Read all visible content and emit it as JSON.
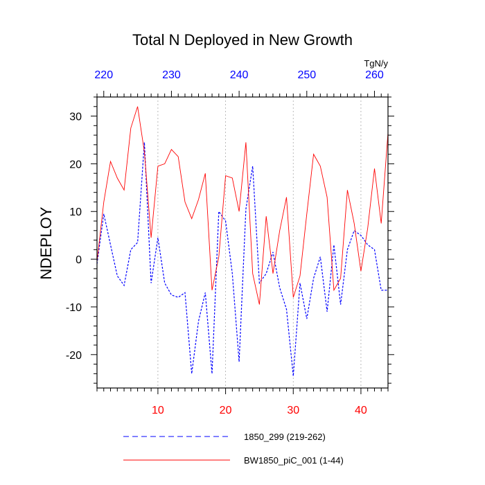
{
  "chart_data": {
    "type": "line",
    "title": "Total N Deployed in New Growth",
    "ylabel": "NDEPLOY",
    "units": "TgN/y",
    "xlim": [
      1,
      44
    ],
    "ylim": [
      -27,
      34
    ],
    "x_ticks": [
      10,
      20,
      30,
      40
    ],
    "x_tick_labels": [
      "10",
      "20",
      "30",
      "40"
    ],
    "top_axis": {
      "ticks": [
        220,
        230,
        240,
        250,
        260
      ],
      "tick_labels": [
        "220",
        "230",
        "240",
        "250",
        "260"
      ],
      "offset": 218
    },
    "y_ticks": [
      -20,
      -10,
      0,
      10,
      20,
      30
    ],
    "y_tick_labels": [
      "-20",
      "-10",
      "0",
      "10",
      "20",
      "30"
    ],
    "vertical_gridlines_at": [
      10,
      20,
      30,
      40
    ],
    "colors": {
      "bottom_axis_labels": "#ff0000",
      "top_axis_labels": "#0000ff"
    },
    "x": [
      1,
      2,
      3,
      4,
      5,
      6,
      7,
      8,
      9,
      10,
      11,
      12,
      13,
      14,
      15,
      16,
      17,
      18,
      19,
      20,
      21,
      22,
      23,
      24,
      25,
      26,
      27,
      28,
      29,
      30,
      31,
      32,
      33,
      34,
      35,
      36,
      37,
      38,
      39,
      40,
      41,
      42,
      43,
      44
    ],
    "series": [
      {
        "name": "1850_299 (219-262)",
        "color": "#0000ff",
        "style": "dashed",
        "values": [
          -1,
          9.5,
          3,
          -3.5,
          -5.5,
          2,
          3.5,
          24.5,
          -5,
          4.5,
          -5,
          -7.5,
          -8,
          -7,
          -24,
          -13,
          -7,
          -24,
          10,
          8,
          -3,
          -21.5,
          10.5,
          19.5,
          -5,
          -3,
          1.5,
          -6,
          -10.5,
          -24.5,
          -5,
          -12.5,
          -4,
          0.5,
          -11,
          3,
          -9.5,
          2,
          6,
          5,
          3,
          2,
          -6.5,
          -6.5
        ]
      },
      {
        "name": "BW1850_piC_001 (1-44)",
        "color": "#ff0000",
        "style": "solid",
        "values": [
          -0.5,
          12,
          20.5,
          17,
          14.5,
          27.5,
          32,
          22.5,
          4.5,
          19.5,
          20,
          23,
          21.5,
          12,
          8.5,
          12.5,
          18,
          -6.5,
          0.5,
          17.5,
          17,
          10,
          24.5,
          -3,
          -9.5,
          9,
          -3,
          6,
          13,
          -8,
          -3.5,
          9.5,
          22,
          19.5,
          13,
          -6.5,
          -4,
          14.5,
          7.5,
          -2.5,
          6.5,
          19,
          7.5,
          26.5
        ]
      }
    ]
  }
}
